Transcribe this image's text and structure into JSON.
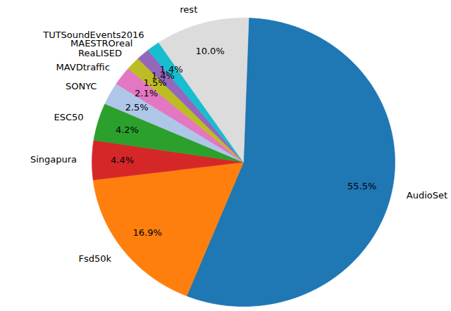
{
  "chart_data": {
    "type": "pie",
    "categories": [
      "AudioSet",
      "Fsd50k",
      "Singapura",
      "ESC50",
      "SONYC",
      "MAVDtraffic",
      "ReaLISED",
      "MAESTROreal",
      "TUTSoundEvents2016",
      "rest"
    ],
    "values": [
      55.5,
      16.9,
      4.4,
      4.2,
      2.5,
      2.1,
      1.5,
      1.4,
      1.4,
      10.0
    ],
    "value_labels": [
      "55.5%",
      "16.9%",
      "4.4%",
      "4.2%",
      "2.5%",
      "2.1%",
      "1.5%",
      "1.4%",
      "1.4%",
      "10.0%"
    ],
    "colors": [
      "#1f77b4",
      "#ff7f0e",
      "#d62728",
      "#2ca02c",
      "#aec7e8",
      "#e377c2",
      "#bcbd22",
      "#9467bd",
      "#17becf",
      "#dcdcdc"
    ],
    "data_labels": true
  }
}
